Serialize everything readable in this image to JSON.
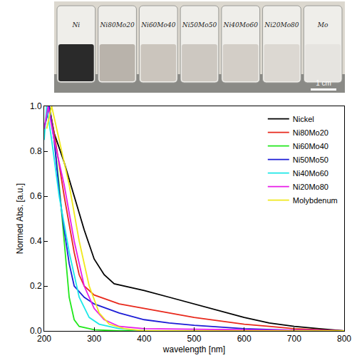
{
  "photo": {
    "labels": [
      "Ni",
      "Ni80Mo20",
      "Ni60Mo40",
      "Ni50Mo50",
      "Ni40Mo60",
      "Ni20Mo80",
      "Mo"
    ],
    "scale_bar": "1 cm"
  },
  "chart_data": {
    "type": "line",
    "x_label": "wavelength [nm]",
    "y_label": "Normed Abs. [a.u.]",
    "xlim": [
      200,
      800
    ],
    "xticks": [
      200,
      300,
      400,
      500,
      600,
      700,
      800
    ],
    "ylim": [
      0,
      1.0
    ],
    "yticks": [
      {
        "value": 0,
        "label": "0.0"
      },
      0.2,
      0.4,
      0.6,
      0.8,
      {
        "value": 1.0,
        "label": "1.0"
      }
    ],
    "grid": false,
    "legend": "upper right",
    "series": [
      {
        "name": "Nickel",
        "color": "#000000",
        "x": [
          205,
          210,
          220,
          240,
          260,
          280,
          300,
          320,
          340,
          360,
          380,
          400,
          450,
          500,
          550,
          600,
          650,
          700,
          750,
          800
        ],
        "values": [
          0.98,
          1.0,
          0.88,
          0.75,
          0.6,
          0.45,
          0.32,
          0.25,
          0.21,
          0.2,
          0.19,
          0.18,
          0.15,
          0.12,
          0.09,
          0.06,
          0.035,
          0.02,
          0.01,
          0.0
        ]
      },
      {
        "name": "Ni80Mo20",
        "color": "#e8291c",
        "x": [
          205,
          210,
          220,
          240,
          260,
          270,
          280,
          300,
          350,
          400,
          450,
          500,
          550,
          600,
          650,
          700,
          800
        ],
        "values": [
          0.95,
          1.0,
          0.88,
          0.6,
          0.35,
          0.25,
          0.2,
          0.16,
          0.12,
          0.1,
          0.08,
          0.06,
          0.045,
          0.03,
          0.02,
          0.01,
          0.0
        ]
      },
      {
        "name": "Ni60Mo40",
        "color": "#22e81c",
        "x": [
          200,
          210,
          220,
          230,
          240,
          250,
          260,
          270,
          300,
          350,
          800
        ],
        "values": [
          0.9,
          1.0,
          0.85,
          0.65,
          0.4,
          0.15,
          0.05,
          0.02,
          0.005,
          0.0,
          0.0
        ]
      },
      {
        "name": "Ni50Mo50",
        "color": "#1c1cd6",
        "x": [
          200,
          210,
          220,
          230,
          240,
          250,
          260,
          280,
          300,
          350,
          400,
          450,
          500,
          600,
          700,
          800
        ],
        "values": [
          0.9,
          1.0,
          0.85,
          0.62,
          0.45,
          0.3,
          0.2,
          0.15,
          0.12,
          0.08,
          0.05,
          0.035,
          0.025,
          0.01,
          0.003,
          0.0
        ]
      },
      {
        "name": "Ni40Mo60",
        "color": "#1ce8e8",
        "x": [
          200,
          205,
          215,
          230,
          250,
          270,
          290,
          310,
          350,
          400,
          800
        ],
        "values": [
          0.85,
          1.0,
          0.85,
          0.6,
          0.35,
          0.15,
          0.06,
          0.03,
          0.01,
          0.0,
          0.0
        ]
      },
      {
        "name": "Ni20Mo80",
        "color": "#e81ce8",
        "x": [
          200,
          208,
          220,
          240,
          260,
          280,
          300,
          320,
          350,
          400,
          800
        ],
        "values": [
          0.9,
          1.0,
          0.85,
          0.65,
          0.4,
          0.2,
          0.1,
          0.05,
          0.02,
          0.01,
          0.0
        ]
      },
      {
        "name": "Molybdenum",
        "color": "#f0e81c",
        "x": [
          205,
          215,
          230,
          250,
          270,
          290,
          310,
          330,
          360,
          400,
          800
        ],
        "values": [
          0.9,
          1.0,
          0.85,
          0.65,
          0.4,
          0.2,
          0.08,
          0.03,
          0.01,
          0.0,
          0.0
        ]
      }
    ]
  }
}
